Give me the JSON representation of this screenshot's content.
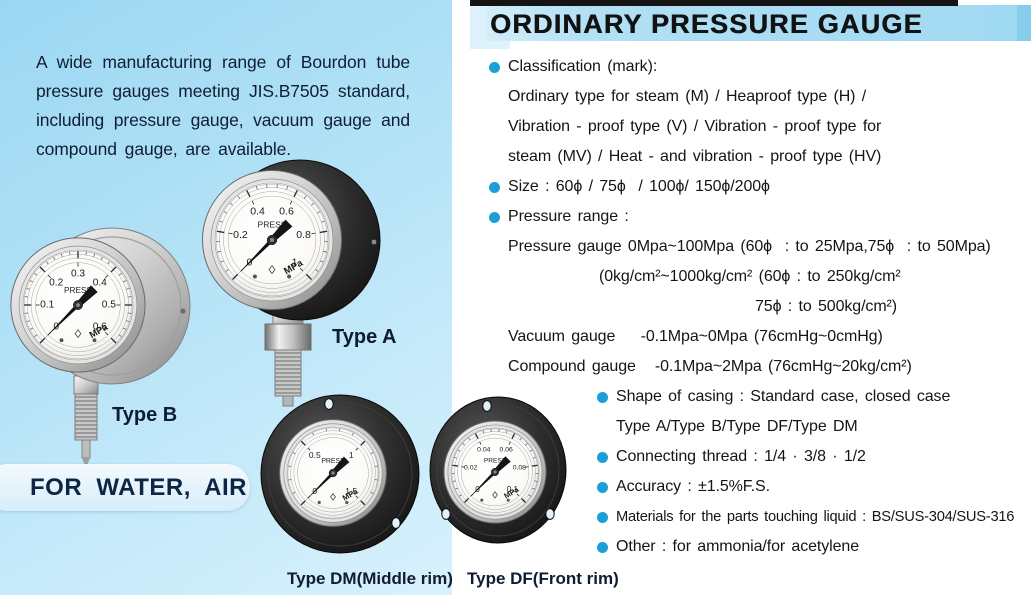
{
  "page": {
    "title": "ORDINARY PRESSURE GAUGE",
    "intro": "A wide manufacturing range of Bourdon tube pressure gauges meeting JIS.B7505 standard, including pressure gauge, vacuum gauge and compound gauge, are available.",
    "banner": "FOR WATER, AIR"
  },
  "colors": {
    "accent_bullet": "#1b9fd8",
    "header_band_blue": "#a5dbf3",
    "panel_blue": "#a8ddf4",
    "text_dark": "#14213a"
  },
  "specs": [
    {
      "bullet": true,
      "indent": "l0",
      "text": "Classification (mark):"
    },
    {
      "bullet": false,
      "indent": "l1",
      "text": "Ordinary type for steam (M) / Heaproof type (H) /"
    },
    {
      "bullet": false,
      "indent": "l1",
      "text": "Vibration - proof type (V) / Vibration - proof type for"
    },
    {
      "bullet": false,
      "indent": "l1",
      "text": "steam (MV) / Heat - and vibration - proof type (HV)"
    },
    {
      "bullet": true,
      "indent": "l0",
      "text": "Size : 60ϕ / 75ϕ  / 100ϕ/ 150ϕ/200ϕ"
    },
    {
      "bullet": true,
      "indent": "l0",
      "text": "Pressure range :"
    },
    {
      "bullet": false,
      "indent": "l1",
      "text": "Pressure gauge 0Mpa~100Mpa (60ϕ  : to 25Mpa,75ϕ  : to 50Mpa)"
    },
    {
      "bullet": false,
      "indent": "l2",
      "text": "(0kg/cm²~1000kg/cm² (60ϕ : to 250kg/cm²"
    },
    {
      "bullet": false,
      "indent": "l3",
      "text": "75ϕ : to 500kg/cm²)"
    },
    {
      "bullet": false,
      "indent": "l1",
      "text": "Vacuum gauge    -0.1Mpa~0Mpa (76cmHg~0cmHg)"
    },
    {
      "bullet": false,
      "indent": "l1",
      "text": "Compound gauge   -0.1Mpa~2Mpa (76cmHg~20kg/cm²)"
    },
    {
      "bullet": true,
      "indent": "l4",
      "text": "Shape of casing : Standard case, closed case"
    },
    {
      "bullet": false,
      "indent": "l5",
      "text": "Type A/Type B/Type DF/Type DM"
    },
    {
      "bullet": true,
      "indent": "l4",
      "text": "Connecting thread : 1/4 · 3/8 · 1/2"
    },
    {
      "bullet": true,
      "indent": "l4",
      "text": "Accuracy : ±1.5%F.S."
    },
    {
      "bullet": true,
      "indent": "l4",
      "text": "Materials for the parts touching liquid : BS/SUS-304/SUS-316",
      "small": true
    },
    {
      "bullet": true,
      "indent": "l4",
      "text": "Other : for ammonia/for acetylene"
    }
  ],
  "gauges": {
    "type_b": {
      "label": "Type B",
      "dial_word": "PRESS",
      "unit": "MPa",
      "scale": [
        "0",
        "0.1",
        "0.2",
        "0.3",
        "0.4",
        "0.5",
        "0.6"
      ]
    },
    "type_a": {
      "label": "Type A",
      "dial_word": "PRESS",
      "unit": "MPa",
      "scale": [
        "0",
        "0.2",
        "0.4",
        "0.6",
        "0.8",
        "1"
      ]
    },
    "type_dm": {
      "label": "Type DM(Middle rim)",
      "dial_word": "PRESS",
      "unit": "MPa",
      "scale": [
        "0",
        "0.5",
        "1",
        "1.5"
      ]
    },
    "type_df": {
      "label": "Type DF(Front rim)",
      "dial_word": "PRESS",
      "unit": "MPa",
      "scale": [
        "0",
        "0.02",
        "0.04",
        "0.06",
        "0.08",
        "0.1"
      ]
    }
  }
}
